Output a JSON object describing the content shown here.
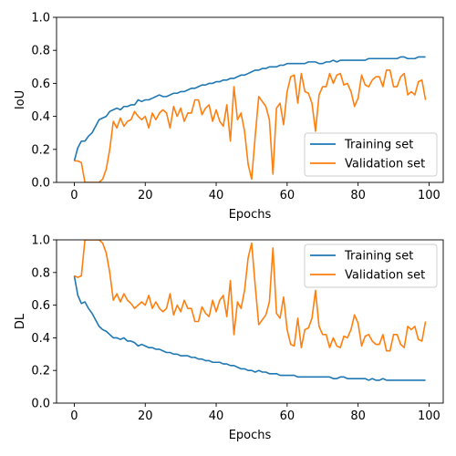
{
  "chart_data": [
    {
      "type": "line",
      "xlabel": "Epochs",
      "ylabel": "IoU",
      "xlim": [
        -5,
        104
      ],
      "ylim": [
        0.0,
        1.0
      ],
      "xticks": [
        "0",
        "20",
        "40",
        "60",
        "80",
        "100"
      ],
      "yticks": [
        "0.0",
        "0.2",
        "0.4",
        "0.6",
        "0.8",
        "1.0"
      ],
      "grid": false,
      "legend": "lower-right",
      "series": [
        {
          "name": "Training set",
          "color": "#1f77b4",
          "values": [
            0.13,
            0.21,
            0.25,
            0.25,
            0.28,
            0.3,
            0.34,
            0.38,
            0.39,
            0.4,
            0.43,
            0.44,
            0.45,
            0.44,
            0.46,
            0.46,
            0.47,
            0.47,
            0.5,
            0.49,
            0.5,
            0.5,
            0.51,
            0.52,
            0.53,
            0.52,
            0.52,
            0.53,
            0.54,
            0.54,
            0.55,
            0.55,
            0.56,
            0.57,
            0.57,
            0.58,
            0.59,
            0.59,
            0.6,
            0.6,
            0.61,
            0.61,
            0.62,
            0.62,
            0.63,
            0.63,
            0.64,
            0.65,
            0.65,
            0.66,
            0.67,
            0.68,
            0.68,
            0.69,
            0.69,
            0.7,
            0.7,
            0.7,
            0.71,
            0.71,
            0.72,
            0.72,
            0.72,
            0.72,
            0.72,
            0.72,
            0.73,
            0.73,
            0.73,
            0.72,
            0.72,
            0.73,
            0.73,
            0.74,
            0.73,
            0.74,
            0.74,
            0.74,
            0.74,
            0.74,
            0.74,
            0.74,
            0.74,
            0.75,
            0.75,
            0.75,
            0.75,
            0.75,
            0.75,
            0.75,
            0.75,
            0.75,
            0.76,
            0.76,
            0.75,
            0.75,
            0.75,
            0.76,
            0.76,
            0.76
          ]
        },
        {
          "name": "Validation set",
          "color": "#ff7f0e",
          "values": [
            0.13,
            0.13,
            0.12,
            0.0,
            0.0,
            0.0,
            0.0,
            0.0,
            0.02,
            0.08,
            0.2,
            0.37,
            0.33,
            0.39,
            0.34,
            0.37,
            0.38,
            0.43,
            0.4,
            0.38,
            0.4,
            0.33,
            0.42,
            0.38,
            0.42,
            0.44,
            0.42,
            0.33,
            0.46,
            0.4,
            0.45,
            0.37,
            0.42,
            0.42,
            0.5,
            0.5,
            0.41,
            0.45,
            0.47,
            0.37,
            0.44,
            0.37,
            0.34,
            0.47,
            0.25,
            0.58,
            0.38,
            0.42,
            0.31,
            0.11,
            0.02,
            0.28,
            0.52,
            0.49,
            0.46,
            0.38,
            0.05,
            0.45,
            0.48,
            0.35,
            0.55,
            0.64,
            0.65,
            0.48,
            0.66,
            0.55,
            0.54,
            0.48,
            0.31,
            0.53,
            0.58,
            0.58,
            0.66,
            0.6,
            0.65,
            0.66,
            0.59,
            0.6,
            0.55,
            0.46,
            0.51,
            0.65,
            0.59,
            0.58,
            0.62,
            0.64,
            0.64,
            0.58,
            0.68,
            0.68,
            0.58,
            0.58,
            0.64,
            0.66,
            0.53,
            0.55,
            0.53,
            0.61,
            0.62,
            0.5
          ]
        }
      ]
    },
    {
      "type": "line",
      "xlabel": "Epochs",
      "ylabel": "DL",
      "xlim": [
        -5,
        104
      ],
      "ylim": [
        0.0,
        1.0
      ],
      "xticks": [
        "0",
        "20",
        "40",
        "60",
        "80",
        "100"
      ],
      "yticks": [
        "0.0",
        "0.2",
        "0.4",
        "0.6",
        "0.8",
        "1.0"
      ],
      "grid": false,
      "legend": "upper-right",
      "series": [
        {
          "name": "Training set",
          "color": "#1f77b4",
          "values": [
            0.78,
            0.66,
            0.61,
            0.62,
            0.58,
            0.55,
            0.51,
            0.47,
            0.45,
            0.44,
            0.42,
            0.4,
            0.4,
            0.39,
            0.4,
            0.38,
            0.38,
            0.37,
            0.35,
            0.36,
            0.35,
            0.34,
            0.34,
            0.33,
            0.33,
            0.32,
            0.31,
            0.31,
            0.3,
            0.3,
            0.29,
            0.29,
            0.29,
            0.28,
            0.28,
            0.27,
            0.27,
            0.26,
            0.26,
            0.25,
            0.25,
            0.25,
            0.24,
            0.24,
            0.23,
            0.23,
            0.22,
            0.21,
            0.21,
            0.2,
            0.2,
            0.19,
            0.2,
            0.19,
            0.19,
            0.18,
            0.18,
            0.18,
            0.17,
            0.17,
            0.17,
            0.17,
            0.17,
            0.16,
            0.16,
            0.16,
            0.16,
            0.16,
            0.16,
            0.16,
            0.16,
            0.16,
            0.16,
            0.15,
            0.15,
            0.16,
            0.16,
            0.15,
            0.15,
            0.15,
            0.15,
            0.15,
            0.15,
            0.14,
            0.15,
            0.14,
            0.14,
            0.15,
            0.14,
            0.14,
            0.14,
            0.14,
            0.14,
            0.14,
            0.14,
            0.14,
            0.14,
            0.14,
            0.14,
            0.14
          ]
        },
        {
          "name": "Validation set",
          "color": "#ff7f0e",
          "values": [
            0.78,
            0.77,
            0.78,
            1.0,
            1.0,
            1.0,
            1.0,
            1.0,
            0.98,
            0.92,
            0.8,
            0.63,
            0.67,
            0.62,
            0.67,
            0.63,
            0.61,
            0.58,
            0.6,
            0.62,
            0.6,
            0.66,
            0.58,
            0.62,
            0.58,
            0.56,
            0.58,
            0.67,
            0.54,
            0.6,
            0.56,
            0.63,
            0.58,
            0.58,
            0.5,
            0.5,
            0.59,
            0.55,
            0.53,
            0.63,
            0.56,
            0.63,
            0.66,
            0.53,
            0.75,
            0.42,
            0.62,
            0.58,
            0.69,
            0.89,
            0.98,
            0.72,
            0.48,
            0.51,
            0.54,
            0.62,
            0.95,
            0.55,
            0.52,
            0.65,
            0.45,
            0.36,
            0.35,
            0.52,
            0.34,
            0.45,
            0.46,
            0.52,
            0.69,
            0.47,
            0.42,
            0.42,
            0.34,
            0.4,
            0.35,
            0.34,
            0.41,
            0.4,
            0.45,
            0.54,
            0.49,
            0.35,
            0.41,
            0.42,
            0.38,
            0.36,
            0.36,
            0.42,
            0.32,
            0.32,
            0.42,
            0.42,
            0.36,
            0.34,
            0.47,
            0.45,
            0.47,
            0.39,
            0.38,
            0.5
          ]
        }
      ]
    }
  ]
}
